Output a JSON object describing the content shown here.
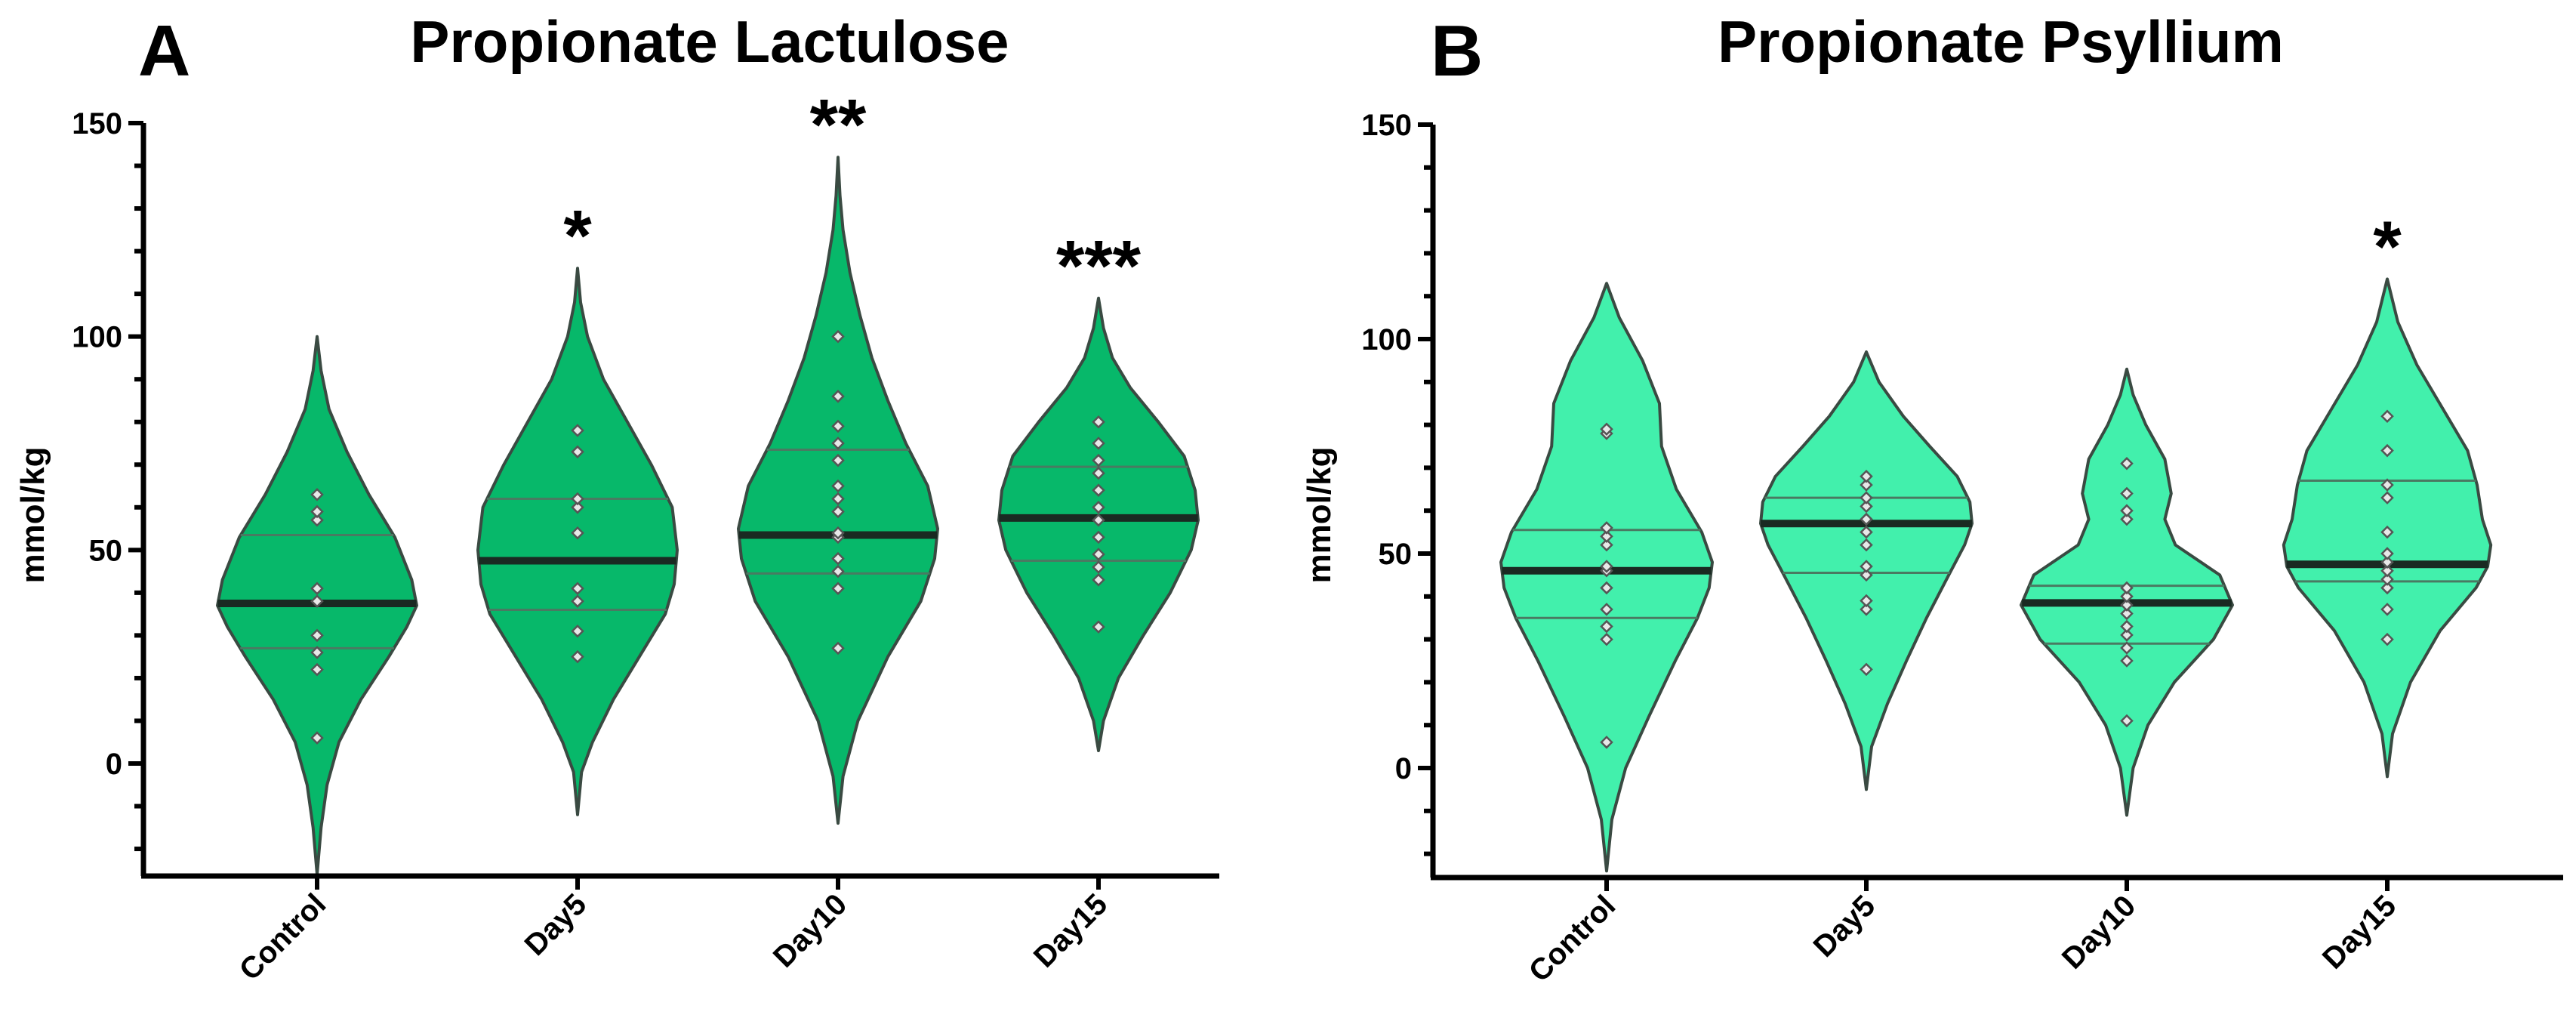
{
  "chart_data": [
    {
      "type": "violin",
      "panel_label": "A",
      "title": "Propionate Lactulose",
      "xlabel": "",
      "ylabel": "mmol/kg",
      "ylim": [
        -25,
        150
      ],
      "yticks": [
        0,
        50,
        100,
        150
      ],
      "grid": false,
      "fill_color": "#07b86a",
      "categories": [
        "Control",
        "Day5",
        "Day10",
        "Day15"
      ],
      "significance": [
        "",
        "*",
        "**",
        "***"
      ],
      "violins": [
        {
          "category": "Control",
          "median": 37.5,
          "quartiles": [
            27,
            53.5
          ],
          "range": [
            -26,
            100
          ],
          "profile": [
            [
              -26,
              0
            ],
            [
              -15,
              0.04
            ],
            [
              -5,
              0.1
            ],
            [
              5,
              0.22
            ],
            [
              15,
              0.44
            ],
            [
              25,
              0.72
            ],
            [
              32,
              0.9
            ],
            [
              37,
              1.0
            ],
            [
              43,
              0.95
            ],
            [
              53,
              0.78
            ],
            [
              63,
              0.52
            ],
            [
              73,
              0.3
            ],
            [
              83,
              0.12
            ],
            [
              92,
              0.04
            ],
            [
              100,
              0
            ]
          ],
          "points": [
            6,
            22,
            26,
            30,
            38,
            41,
            57,
            59,
            63
          ]
        },
        {
          "category": "Day5",
          "median": 47.5,
          "quartiles": [
            36,
            62
          ],
          "range": [
            -12,
            116
          ],
          "profile": [
            [
              -12,
              0
            ],
            [
              -2,
              0.04
            ],
            [
              5,
              0.15
            ],
            [
              15,
              0.36
            ],
            [
              25,
              0.62
            ],
            [
              35,
              0.88
            ],
            [
              42,
              0.97
            ],
            [
              50,
              1.0
            ],
            [
              60,
              0.95
            ],
            [
              70,
              0.74
            ],
            [
              80,
              0.5
            ],
            [
              90,
              0.26
            ],
            [
              100,
              0.1
            ],
            [
              108,
              0.03
            ],
            [
              116,
              0
            ]
          ],
          "points": [
            25,
            31,
            38,
            41,
            54,
            60,
            62,
            73,
            78
          ]
        },
        {
          "category": "Day10",
          "median": 53.5,
          "quartiles": [
            44.5,
            73.5
          ],
          "range": [
            -14,
            142
          ],
          "profile": [
            [
              -14,
              0
            ],
            [
              -3,
              0.05
            ],
            [
              10,
              0.2
            ],
            [
              25,
              0.5
            ],
            [
              38,
              0.83
            ],
            [
              48,
              0.97
            ],
            [
              55,
              1.0
            ],
            [
              65,
              0.9
            ],
            [
              75,
              0.68
            ],
            [
              85,
              0.5
            ],
            [
              95,
              0.34
            ],
            [
              105,
              0.22
            ],
            [
              115,
              0.12
            ],
            [
              125,
              0.05
            ],
            [
              133,
              0.02
            ],
            [
              142,
              0
            ]
          ],
          "points": [
            27,
            41,
            45,
            48,
            53,
            54,
            59,
            62,
            65,
            71,
            75,
            79,
            86,
            100
          ]
        },
        {
          "category": "Day15",
          "median": 57.5,
          "quartiles": [
            47.5,
            69.5
          ],
          "range": [
            3,
            109
          ],
          "profile": [
            [
              3,
              0
            ],
            [
              10,
              0.05
            ],
            [
              20,
              0.2
            ],
            [
              30,
              0.45
            ],
            [
              40,
              0.72
            ],
            [
              50,
              0.93
            ],
            [
              57,
              1.0
            ],
            [
              64,
              0.97
            ],
            [
              72,
              0.86
            ],
            [
              80,
              0.6
            ],
            [
              88,
              0.32
            ],
            [
              95,
              0.14
            ],
            [
              102,
              0.05
            ],
            [
              109,
              0
            ]
          ],
          "points": [
            32,
            43,
            46,
            49,
            53,
            57,
            60,
            64,
            68,
            71,
            75,
            80
          ]
        }
      ]
    },
    {
      "type": "violin",
      "panel_label": "B",
      "title": "Propionate Psyllium",
      "xlabel": "",
      "ylabel": "mmol/kg",
      "ylim": [
        -25,
        150
      ],
      "yticks": [
        0,
        50,
        100,
        150
      ],
      "grid": false,
      "fill_color": "#42f0ac",
      "categories": [
        "Control",
        "Day5",
        "Day10",
        "Day15"
      ],
      "significance": [
        "",
        "",
        "",
        "*"
      ],
      "violins": [
        {
          "category": "Control",
          "median": 46,
          "quartiles": [
            35,
            55.5
          ],
          "range": [
            -24,
            113
          ],
          "profile": [
            [
              -24,
              0
            ],
            [
              -12,
              0.05
            ],
            [
              0,
              0.18
            ],
            [
              12,
              0.4
            ],
            [
              25,
              0.65
            ],
            [
              35,
              0.86
            ],
            [
              42,
              0.97
            ],
            [
              48,
              1.0
            ],
            [
              55,
              0.9
            ],
            [
              65,
              0.66
            ],
            [
              75,
              0.52
            ],
            [
              85,
              0.5
            ],
            [
              95,
              0.34
            ],
            [
              105,
              0.12
            ],
            [
              113,
              0
            ]
          ],
          "points": [
            6,
            30,
            33,
            37,
            42,
            46,
            47,
            52,
            54,
            56,
            78,
            79
          ]
        },
        {
          "category": "Day5",
          "median": 57,
          "quartiles": [
            45.5,
            63
          ],
          "range": [
            -5,
            97
          ],
          "profile": [
            [
              -5,
              0
            ],
            [
              5,
              0.05
            ],
            [
              15,
              0.2
            ],
            [
              25,
              0.38
            ],
            [
              35,
              0.57
            ],
            [
              45,
              0.78
            ],
            [
              52,
              0.93
            ],
            [
              57,
              1.0
            ],
            [
              62,
              0.98
            ],
            [
              68,
              0.86
            ],
            [
              75,
              0.6
            ],
            [
              82,
              0.35
            ],
            [
              90,
              0.12
            ],
            [
              97,
              0
            ]
          ],
          "points": [
            23,
            37,
            39,
            45,
            47,
            52,
            55,
            58,
            61,
            63,
            66,
            68
          ]
        },
        {
          "category": "Day10",
          "median": 38.5,
          "quartiles": [
            29,
            42.5
          ],
          "range": [
            -11,
            93
          ],
          "profile": [
            [
              -11,
              0
            ],
            [
              0,
              0.06
            ],
            [
              10,
              0.2
            ],
            [
              20,
              0.45
            ],
            [
              30,
              0.82
            ],
            [
              38,
              1.0
            ],
            [
              45,
              0.88
            ],
            [
              52,
              0.46
            ],
            [
              58,
              0.36
            ],
            [
              64,
              0.42
            ],
            [
              72,
              0.36
            ],
            [
              80,
              0.18
            ],
            [
              87,
              0.06
            ],
            [
              93,
              0
            ]
          ],
          "points": [
            11,
            25,
            28,
            31,
            33,
            36,
            38,
            40,
            42,
            58,
            60,
            64,
            71
          ]
        },
        {
          "category": "Day15",
          "median": 47.5,
          "quartiles": [
            43.5,
            67
          ],
          "range": [
            -2,
            114
          ],
          "profile": [
            [
              -2,
              0
            ],
            [
              8,
              0.05
            ],
            [
              20,
              0.22
            ],
            [
              32,
              0.5
            ],
            [
              42,
              0.84
            ],
            [
              47,
              0.95
            ],
            [
              52,
              0.98
            ],
            [
              58,
              0.9
            ],
            [
              66,
              0.85
            ],
            [
              74,
              0.76
            ],
            [
              84,
              0.52
            ],
            [
              94,
              0.28
            ],
            [
              104,
              0.1
            ],
            [
              114,
              0
            ]
          ],
          "points": [
            30,
            37,
            42,
            44,
            46,
            48,
            50,
            55,
            63,
            66,
            74,
            82
          ]
        }
      ]
    }
  ]
}
